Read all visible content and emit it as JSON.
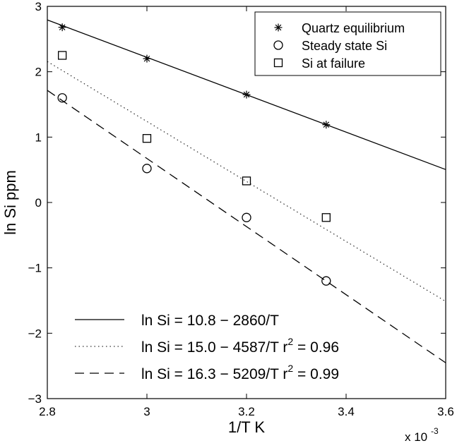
{
  "chart_data": {
    "type": "scatter",
    "xlabel": "1/T K",
    "ylabel": "ln Si ppm",
    "x_multiplier_label": "x 10",
    "x_multiplier_exp": "-3",
    "xlim": [
      0.0028,
      0.0036
    ],
    "ylim": [
      -3,
      3
    ],
    "x_ticks": [
      0.0028,
      0.003,
      0.0032,
      0.0034,
      0.0036
    ],
    "x_tick_labels": [
      "2.8",
      "3",
      "3.2",
      "3.4",
      "3.6"
    ],
    "y_ticks": [
      -3,
      -2,
      -1,
      0,
      1,
      2,
      3
    ],
    "y_tick_labels": [
      "−3",
      "−2",
      "−1",
      "0",
      "1",
      "2",
      "3"
    ],
    "grid": false,
    "legend_top": {
      "placement": "top-right",
      "entries": [
        {
          "marker": "asterisk",
          "label": "Quartz equilibrium"
        },
        {
          "marker": "circle",
          "label": "Steady state Si"
        },
        {
          "marker": "square",
          "label": "Si at failure"
        }
      ]
    },
    "legend_bottom": {
      "placement": "bottom-left",
      "entries": [
        {
          "style": "solid",
          "label": "ln Si = 10.8 − 2860/T",
          "sup": ""
        },
        {
          "style": "dotted",
          "label": "ln Si = 15.0 − 4587/T r",
          "sup": "2",
          "tail": " = 0.96"
        },
        {
          "style": "dashed",
          "label": "ln Si = 16.3 − 5209/T r",
          "sup": "2",
          "tail": " = 0.99"
        }
      ]
    },
    "series": [
      {
        "name": "Quartz equilibrium",
        "marker": "asterisk",
        "x": [
          0.00283,
          0.003,
          0.0032,
          0.00336
        ],
        "y": [
          2.68,
          2.2,
          1.65,
          1.19
        ]
      },
      {
        "name": "Steady state Si",
        "marker": "circle",
        "x": [
          0.00283,
          0.003,
          0.0032,
          0.00336
        ],
        "y": [
          1.6,
          0.52,
          -0.23,
          -1.2
        ]
      },
      {
        "name": "Si at failure",
        "marker": "square",
        "x": [
          0.00283,
          0.003,
          0.0032,
          0.00336
        ],
        "y": [
          2.25,
          0.98,
          0.33,
          -0.23
        ]
      }
    ],
    "fit_lines": [
      {
        "style": "solid",
        "a": 10.8,
        "b": 2860
      },
      {
        "style": "dotted",
        "a": 15.0,
        "b": 4587
      },
      {
        "style": "dashed",
        "a": 16.3,
        "b": 5209
      }
    ]
  }
}
